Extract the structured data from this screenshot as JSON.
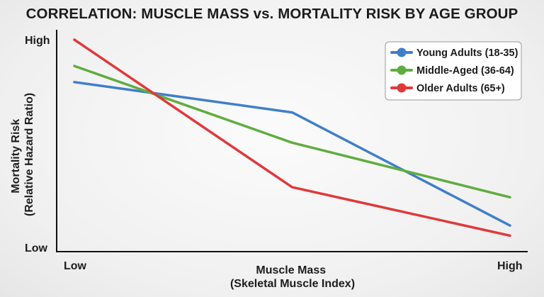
{
  "chart_data": {
    "type": "line",
    "title": "CORRELATION: MUSCLE MASS vs. MORTALITY RISK BY AGE GROUP",
    "xlabel": [
      "Muscle Mass",
      "(Skeletal Muscle Index)"
    ],
    "ylabel": [
      "Mortality Risk",
      "(Relative Hazard Ratio)"
    ],
    "x_ticks": [
      "Low",
      "High"
    ],
    "y_ticks": [
      "Low",
      "High"
    ],
    "x": [
      0,
      1,
      2
    ],
    "ylim": [
      0,
      1
    ],
    "legend_position": "top-right",
    "series": [
      {
        "name": "Young Adults (18-35)",
        "color": "#3f7fca",
        "values": [
          0.79,
          0.64,
          0.08
        ]
      },
      {
        "name": "Middle-Aged (36-64)",
        "color": "#5fad3f",
        "values": [
          0.87,
          0.49,
          0.22
        ]
      },
      {
        "name": "Older Adults (65+)",
        "color": "#e0393b",
        "values": [
          1.0,
          0.27,
          0.03
        ]
      }
    ]
  }
}
